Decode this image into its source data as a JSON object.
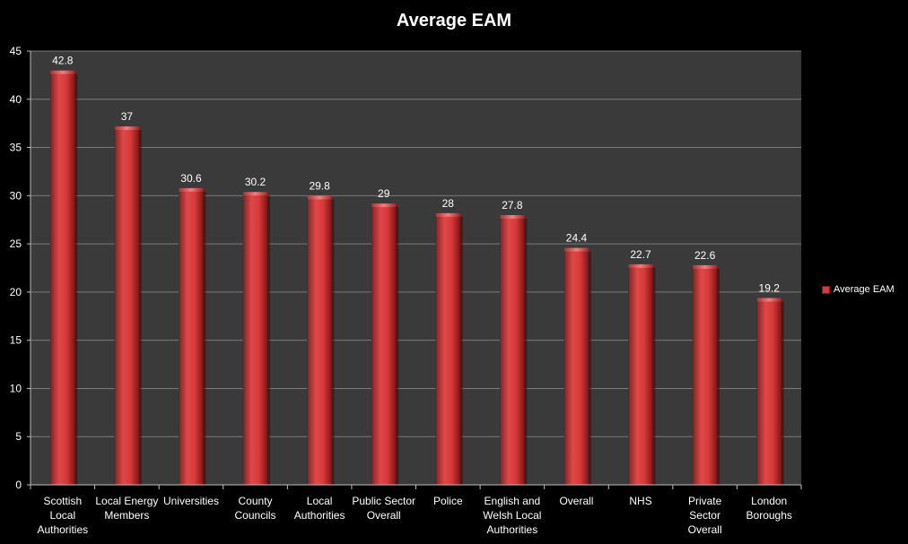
{
  "chart_data": {
    "type": "bar",
    "title": "Average EAM",
    "categories": [
      "Scottish Local Authorities",
      "Local Energy Members",
      "Universities",
      "County Councils",
      "Local Authorities",
      "Public Sector Overall",
      "Police",
      "English and Welsh Local Authorities",
      "Overall",
      "NHS",
      "Private Sector Overall",
      "London Boroughs"
    ],
    "category_lines": [
      [
        "Scottish",
        "Local",
        "Authorities"
      ],
      [
        "Local Energy",
        "Members"
      ],
      [
        "Universities"
      ],
      [
        "County",
        "Councils"
      ],
      [
        "Local",
        "Authorities"
      ],
      [
        "Public Sector",
        "Overall"
      ],
      [
        "Police"
      ],
      [
        "English and",
        "Welsh Local",
        "Authorities"
      ],
      [
        "Overall"
      ],
      [
        "NHS"
      ],
      [
        "Private",
        "Sector",
        "Overall"
      ],
      [
        "London",
        "Boroughs"
      ]
    ],
    "series": [
      {
        "name": "Average EAM",
        "values": [
          42.8,
          37,
          30.6,
          30.2,
          29.8,
          29,
          28,
          27.8,
          24.4,
          22.7,
          22.6,
          19.2
        ],
        "labels": [
          "42.8",
          "37",
          "30.6",
          "30.2",
          "29.8",
          "29",
          "28",
          "27.8",
          "24.4",
          "22.7",
          "22.6",
          "19.2"
        ]
      }
    ],
    "ylim": [
      0,
      45
    ],
    "yticks": [
      0,
      5,
      10,
      15,
      20,
      25,
      30,
      35,
      40,
      45
    ],
    "grid": true,
    "legend_position": "right",
    "colors": {
      "background": "#000000",
      "plot_area": "#3a3a3a",
      "gridline": "#7a7a7a",
      "bar": "#d63a3a",
      "bar_dark": "#8e1f1f",
      "bar_light": "#f07070",
      "text": "#ffffff"
    }
  }
}
